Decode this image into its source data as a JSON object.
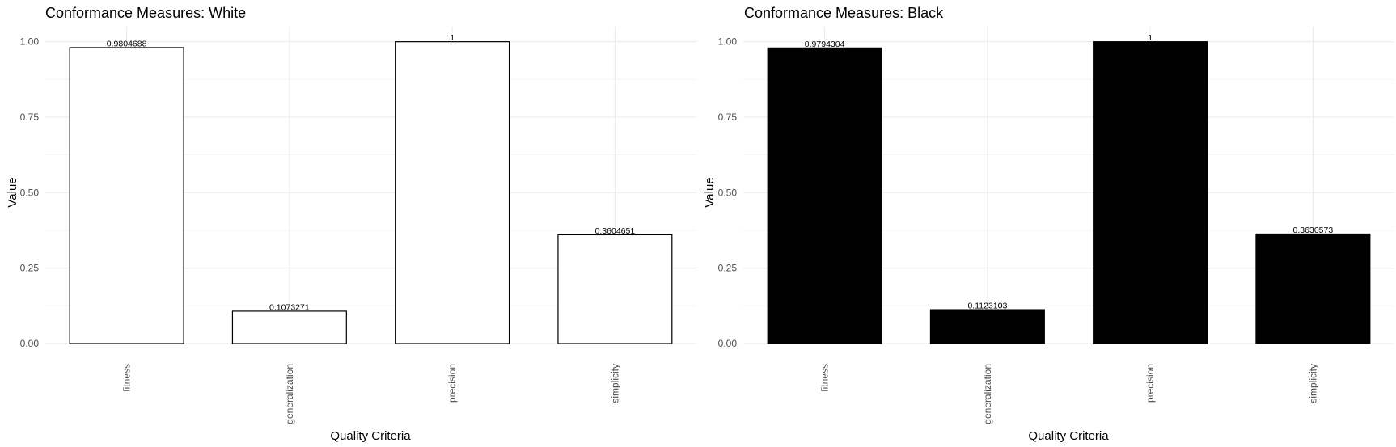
{
  "chart_data": [
    {
      "type": "bar",
      "title": "Conformance Measures: White",
      "xlabel": "Quality Criteria",
      "ylabel": "Value",
      "categories": [
        "fitness",
        "generalization",
        "precision",
        "simplicity"
      ],
      "values": [
        0.9804688,
        0.1073271,
        1,
        0.3604651
      ],
      "value_labels": [
        "0.9804688",
        "0.1073271",
        "1",
        "0.3604651"
      ],
      "ylim": [
        0,
        1.05
      ],
      "yticks": [
        0,
        0.25,
        0.5,
        0.75,
        1.0
      ],
      "ytick_labels": [
        "0.00",
        "0.25",
        "0.50",
        "0.75",
        "1.00"
      ],
      "bar_fill": "#ffffff",
      "bar_stroke": "#000000",
      "grid": true,
      "legend": "none"
    },
    {
      "type": "bar",
      "title": "Conformance Measures: Black",
      "xlabel": "Quality Criteria",
      "ylabel": "Value",
      "categories": [
        "fitness",
        "generalization",
        "precision",
        "simplicity"
      ],
      "values": [
        0.9794304,
        0.1123103,
        1,
        0.3630573
      ],
      "value_labels": [
        "0.9794304",
        "0.1123103",
        "1",
        "0.3630573"
      ],
      "ylim": [
        0,
        1.05
      ],
      "yticks": [
        0,
        0.25,
        0.5,
        0.75,
        1.0
      ],
      "ytick_labels": [
        "0.00",
        "0.25",
        "0.50",
        "0.75",
        "1.00"
      ],
      "bar_fill": "#000000",
      "bar_stroke": "#000000",
      "grid": true,
      "legend": "none"
    }
  ]
}
